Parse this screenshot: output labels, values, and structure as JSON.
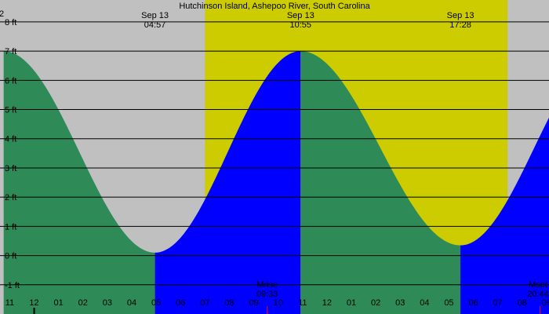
{
  "chart_data": {
    "type": "area",
    "title": "Hutchinson Island, Ashepoo River, South Carolina",
    "x_unit": "hour of day (Sep 12 23:00 to Sep 13 21:00)",
    "x_range": [
      22.6,
      45.1
    ],
    "ylim": [
      -2,
      8.75
    ],
    "y_ticks": [
      {
        "value": 8,
        "label": "8 ft"
      },
      {
        "value": 7,
        "label": "7 ft"
      },
      {
        "value": 6,
        "label": "6 ft"
      },
      {
        "value": 5,
        "label": "5 ft"
      },
      {
        "value": 4,
        "label": "4 ft"
      },
      {
        "value": 3,
        "label": "3 ft"
      },
      {
        "value": 2,
        "label": "2 ft"
      },
      {
        "value": 1,
        "label": "1 ft"
      },
      {
        "value": 0,
        "label": "0 ft"
      },
      {
        "value": -1,
        "label": "-1 ft"
      }
    ],
    "top_left_label": "2",
    "extremes": [
      {
        "type": "high",
        "hour": 22.75,
        "height": 7.0,
        "date": "",
        "time": ""
      },
      {
        "type": "low",
        "hour": 28.95,
        "height": 0.1,
        "date": "Sep 13",
        "time": "04:57"
      },
      {
        "type": "high",
        "hour": 34.92,
        "height": 7.0,
        "date": "Sep 13",
        "time": "10:55"
      },
      {
        "type": "low",
        "hour": 41.47,
        "height": 0.35,
        "date": "Sep 13",
        "time": "17:28"
      },
      {
        "type": "high",
        "hour": 47.5,
        "height": 7.0,
        "date": "",
        "time": ""
      }
    ],
    "daylight": {
      "start": 31.0,
      "end": 43.4
    },
    "hour_labels": [
      {
        "hour": 23,
        "label": "11"
      },
      {
        "hour": 24,
        "label": "12"
      },
      {
        "hour": 25,
        "label": "01"
      },
      {
        "hour": 26,
        "label": "02"
      },
      {
        "hour": 27,
        "label": "03"
      },
      {
        "hour": 28,
        "label": "04"
      },
      {
        "hour": 29,
        "label": "05"
      },
      {
        "hour": 30,
        "label": "06"
      },
      {
        "hour": 31,
        "label": "07"
      },
      {
        "hour": 32,
        "label": "08"
      },
      {
        "hour": 33,
        "label": "09"
      },
      {
        "hour": 34,
        "label": "10"
      },
      {
        "hour": 35,
        "label": "11"
      },
      {
        "hour": 36,
        "label": "12"
      },
      {
        "hour": 37,
        "label": "01"
      },
      {
        "hour": 38,
        "label": "02"
      },
      {
        "hour": 39,
        "label": "03"
      },
      {
        "hour": 40,
        "label": "04"
      },
      {
        "hour": 41,
        "label": "05"
      },
      {
        "hour": 42,
        "label": "06"
      },
      {
        "hour": 43,
        "label": "07"
      },
      {
        "hour": 44,
        "label": "08"
      },
      {
        "hour": 45,
        "label": "09"
      }
    ],
    "moon_events": [
      {
        "label": "Mrise",
        "time": "09:33",
        "hour": 33.55
      },
      {
        "label": "Mset",
        "time": "20:44",
        "hour": 44.73
      }
    ],
    "colors": {
      "background": "#c0c0c0",
      "daylight": "#cccc00",
      "falling_tide": "#2e8b57",
      "rising_tide": "#0000ff",
      "gridline": "#000000",
      "moon_marker": "#ff0000",
      "midnight_marker": "#000000"
    },
    "grid": true
  }
}
